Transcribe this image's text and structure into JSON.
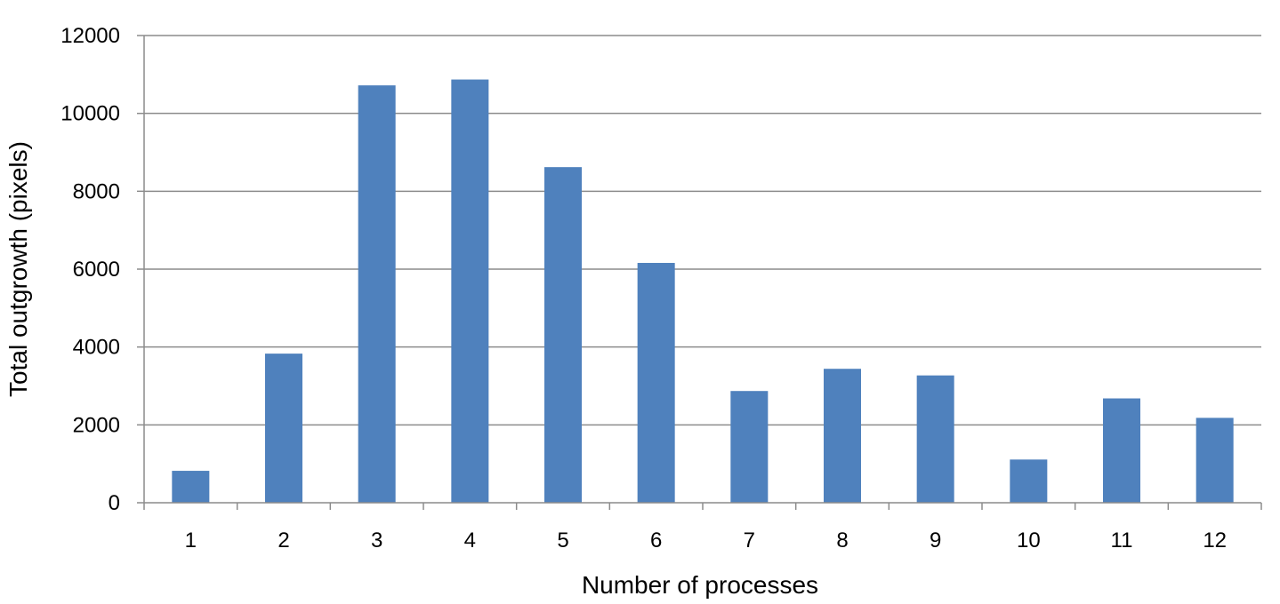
{
  "chart_data": {
    "type": "bar",
    "title": "",
    "xlabel": "Number of processes",
    "ylabel": "Total outgrowth (pixels)",
    "categories": [
      "1",
      "2",
      "3",
      "4",
      "5",
      "6",
      "7",
      "8",
      "9",
      "10",
      "11",
      "12"
    ],
    "values": [
      820,
      3830,
      10720,
      10870,
      8620,
      6160,
      2870,
      3440,
      3270,
      1110,
      2680,
      2180
    ],
    "ylim": [
      0,
      12000
    ],
    "yticks": [
      "0",
      "2000",
      "4000",
      "6000",
      "8000",
      "10000",
      "12000"
    ],
    "grid": true,
    "legend": "none",
    "colors": {
      "bar": "#4f81bd",
      "grid": "#8c8c8c"
    }
  }
}
